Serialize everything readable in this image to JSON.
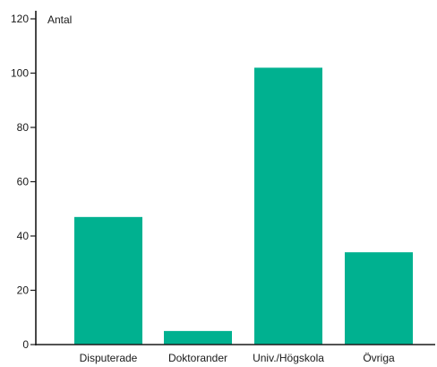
{
  "chart_data": {
    "type": "bar",
    "title": "",
    "xlabel": "",
    "ylabel": "Antal",
    "categories": [
      "Disputerade",
      "Doktorander",
      "Univ./Högskola",
      "Övriga"
    ],
    "values": [
      47,
      5,
      102,
      34
    ],
    "ylim": [
      0,
      120
    ],
    "yticks": [
      0,
      20,
      40,
      60,
      80,
      100,
      120
    ],
    "grid": false,
    "legend": "none",
    "bar_color": "#00b190",
    "axis_color": "#1a1a1a"
  }
}
